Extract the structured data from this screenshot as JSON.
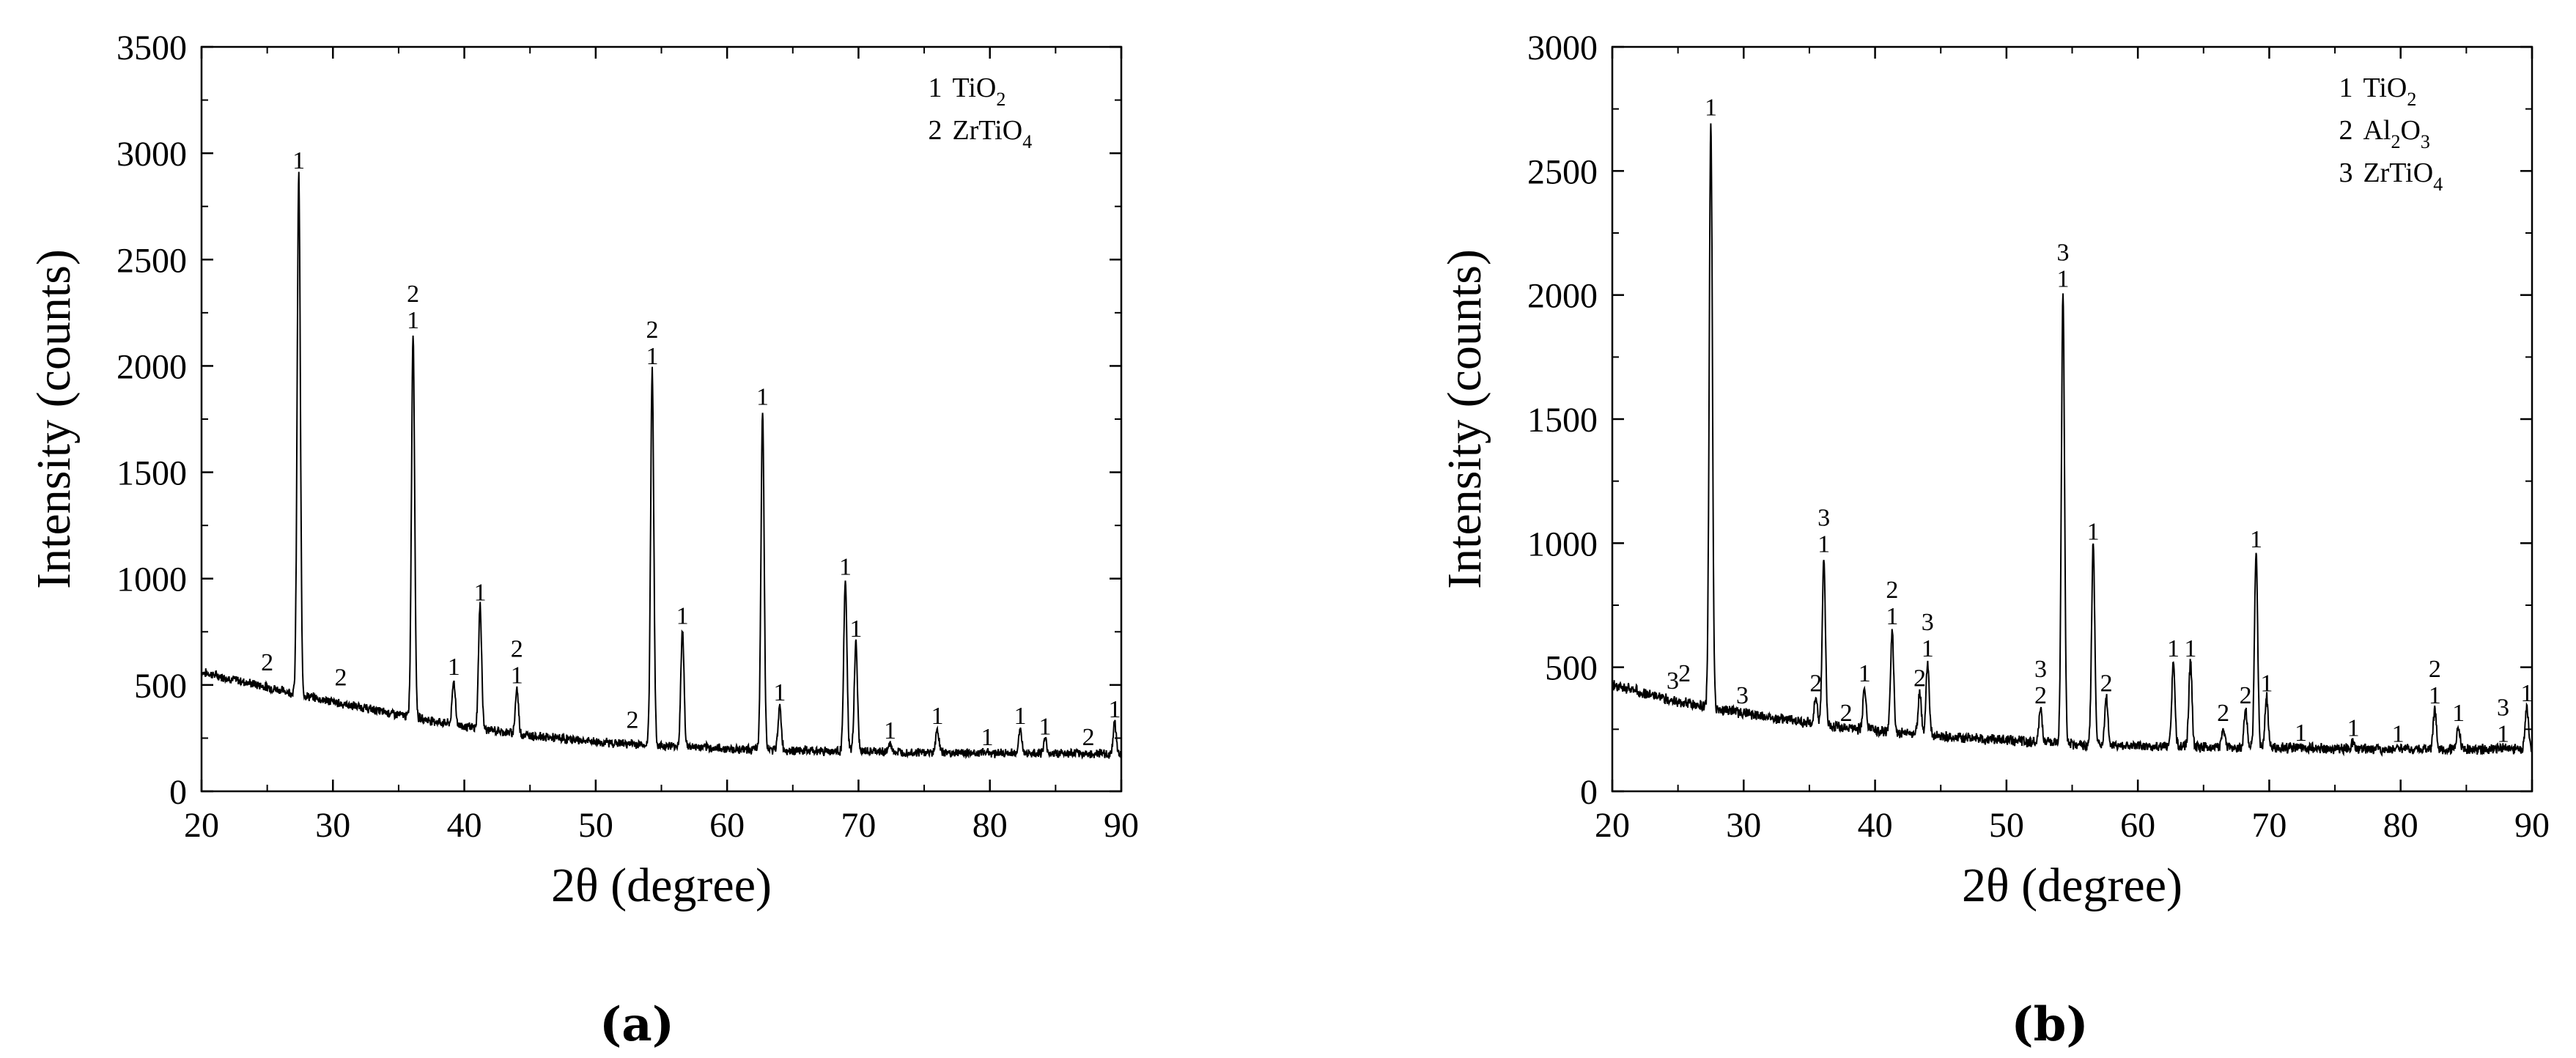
{
  "figure": {
    "panels": [
      "(a)",
      "(b)"
    ]
  },
  "chart_data": [
    {
      "type": "line",
      "panel": "(a)",
      "xlabel": "2θ (degree)",
      "ylabel": "Intensity (counts)",
      "xlim": [
        20,
        90
      ],
      "ylim": [
        0,
        3500
      ],
      "xticks": [
        20,
        30,
        40,
        50,
        60,
        70,
        80,
        90
      ],
      "yticks": [
        0,
        500,
        1000,
        1500,
        2000,
        2500,
        3000,
        3500
      ],
      "grid": false,
      "legend_position": "top-right",
      "legend": [
        {
          "num": "1",
          "name": "TiO",
          "sub": "2"
        },
        {
          "num": "2",
          "name": "ZrTiO",
          "sub": "4"
        }
      ],
      "baseline": [
        [
          20,
          560
        ],
        [
          25,
          490
        ],
        [
          30,
          420
        ],
        [
          35,
          360
        ],
        [
          40,
          305
        ],
        [
          45,
          262
        ],
        [
          50,
          232
        ],
        [
          55,
          215
        ],
        [
          60,
          200
        ],
        [
          65,
          192
        ],
        [
          70,
          188
        ],
        [
          75,
          183
        ],
        [
          80,
          180
        ],
        [
          85,
          178
        ],
        [
          90,
          175
        ]
      ],
      "peaks": [
        {
          "x": 27.4,
          "y": 2900,
          "labels": [
            "1"
          ]
        },
        {
          "x": 36.1,
          "y": 2150,
          "labels": [
            "1",
            "2"
          ]
        },
        {
          "x": 39.2,
          "y": 520,
          "labels": [
            "1"
          ]
        },
        {
          "x": 41.2,
          "y": 870,
          "labels": [
            "1"
          ]
        },
        {
          "x": 44.0,
          "y": 480,
          "labels": [
            "1",
            "2"
          ]
        },
        {
          "x": 54.3,
          "y": 1980,
          "labels": [
            "1",
            "2"
          ]
        },
        {
          "x": 56.6,
          "y": 760,
          "labels": [
            "1"
          ]
        },
        {
          "x": 62.7,
          "y": 1790,
          "labels": [
            "1"
          ]
        },
        {
          "x": 64.0,
          "y": 400,
          "labels": [
            "1"
          ]
        },
        {
          "x": 69.0,
          "y": 990,
          "labels": [
            "1"
          ]
        },
        {
          "x": 69.8,
          "y": 700,
          "labels": [
            "1"
          ]
        },
        {
          "x": 72.4,
          "y": 220,
          "labels": [
            "1"
          ]
        },
        {
          "x": 76.0,
          "y": 290,
          "labels": [
            "1"
          ]
        },
        {
          "x": 79.8,
          "y": 190,
          "labels": [
            "1"
          ]
        },
        {
          "x": 82.3,
          "y": 290,
          "labels": [
            "1"
          ]
        },
        {
          "x": 84.2,
          "y": 240,
          "labels": [
            "1"
          ]
        },
        {
          "x": 89.5,
          "y": 320,
          "labels": [
            "1"
          ]
        }
      ],
      "annotations": [
        {
          "x": 25.0,
          "y": 540,
          "text": "2"
        },
        {
          "x": 30.6,
          "y": 470,
          "text": "2"
        },
        {
          "x": 52.8,
          "y": 270,
          "text": "2"
        },
        {
          "x": 87.5,
          "y": 190,
          "text": "2"
        }
      ]
    },
    {
      "type": "line",
      "panel": "(b)",
      "xlabel": "2θ  (degree)",
      "ylabel": "Intensity (counts)",
      "xlim": [
        20,
        90
      ],
      "ylim": [
        0,
        3000
      ],
      "xticks": [
        20,
        30,
        40,
        50,
        60,
        70,
        80,
        90
      ],
      "yticks": [
        0,
        500,
        1000,
        1500,
        2000,
        2500,
        3000
      ],
      "grid": false,
      "legend_position": "top-right",
      "legend": [
        {
          "num": "1",
          "name": "TiO",
          "sub": "2"
        },
        {
          "num": "2",
          "name": "Al",
          "sub": "2",
          "name2": "O",
          "sub2": "3"
        },
        {
          "num": "3",
          "name": "ZrTiO",
          "sub": "4"
        }
      ],
      "baseline": [
        [
          20,
          430
        ],
        [
          25,
          360
        ],
        [
          30,
          315
        ],
        [
          35,
          275
        ],
        [
          40,
          245
        ],
        [
          45,
          222
        ],
        [
          50,
          205
        ],
        [
          55,
          190
        ],
        [
          60,
          182
        ],
        [
          65,
          178
        ],
        [
          70,
          175
        ],
        [
          75,
          172
        ],
        [
          80,
          170
        ],
        [
          85,
          170
        ],
        [
          90,
          172
        ]
      ],
      "peaks": [
        {
          "x": 27.5,
          "y": 2700,
          "labels": [
            "1"
          ]
        },
        {
          "x": 35.5,
          "y": 380,
          "labels": [
            "2"
          ]
        },
        {
          "x": 36.1,
          "y": 940,
          "labels": [
            "1",
            "3"
          ]
        },
        {
          "x": 37.8,
          "y": 260,
          "labels": [
            "2"
          ]
        },
        {
          "x": 39.2,
          "y": 420,
          "labels": [
            "1"
          ]
        },
        {
          "x": 41.3,
          "y": 650,
          "labels": [
            "1",
            "2"
          ]
        },
        {
          "x": 43.4,
          "y": 400,
          "labels": [
            "2"
          ]
        },
        {
          "x": 44.0,
          "y": 520,
          "labels": [
            "1",
            "3"
          ]
        },
        {
          "x": 52.6,
          "y": 330,
          "labels": [
            "2",
            "3"
          ]
        },
        {
          "x": 54.3,
          "y": 2010,
          "labels": [
            "1",
            "3"
          ]
        },
        {
          "x": 56.6,
          "y": 990,
          "labels": [
            "1"
          ]
        },
        {
          "x": 57.6,
          "y": 380,
          "labels": [
            "2"
          ]
        },
        {
          "x": 62.7,
          "y": 520,
          "labels": [
            "1"
          ]
        },
        {
          "x": 64.0,
          "y": 520,
          "labels": [
            "1"
          ]
        },
        {
          "x": 66.5,
          "y": 260,
          "labels": [
            "2"
          ]
        },
        {
          "x": 68.2,
          "y": 330,
          "labels": [
            "2"
          ]
        },
        {
          "x": 69.0,
          "y": 960,
          "labels": [
            "1"
          ]
        },
        {
          "x": 69.8,
          "y": 380,
          "labels": [
            "1"
          ]
        },
        {
          "x": 72.4,
          "y": 180,
          "labels": [
            "1"
          ]
        },
        {
          "x": 76.4,
          "y": 200,
          "labels": [
            "1"
          ]
        },
        {
          "x": 79.8,
          "y": 175,
          "labels": [
            "1"
          ]
        },
        {
          "x": 82.6,
          "y": 330,
          "labels": [
            "1",
            "2"
          ]
        },
        {
          "x": 84.4,
          "y": 260,
          "labels": [
            "1"
          ]
        },
        {
          "x": 87.8,
          "y": 175,
          "labels": [
            "1",
            "3"
          ]
        },
        {
          "x": 89.6,
          "y": 340,
          "labels": [
            "1"
          ]
        }
      ],
      "annotations": [
        {
          "x": 24.6,
          "y": 390,
          "text": "3"
        },
        {
          "x": 25.5,
          "y": 420,
          "text": "2"
        },
        {
          "x": 29.9,
          "y": 330,
          "text": "3"
        }
      ]
    }
  ]
}
